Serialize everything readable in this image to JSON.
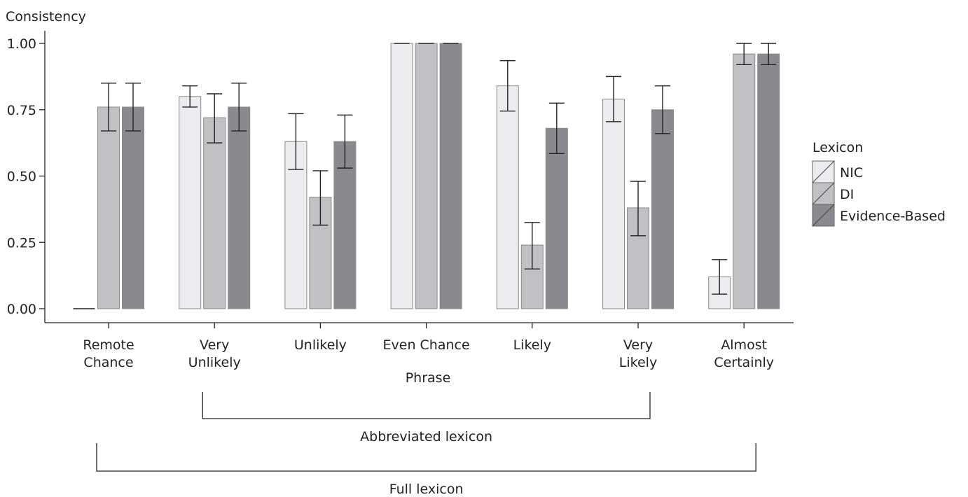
{
  "chart_data": {
    "type": "bar",
    "ylabel": "Consistency",
    "xlabel": "Phrase",
    "ylim": [
      0,
      1
    ],
    "yticks": [
      "0.00",
      "0.25",
      "0.50",
      "0.75",
      "1.00"
    ],
    "ytick_values": [
      0,
      0.25,
      0.5,
      0.75,
      1.0
    ],
    "grid": false,
    "legend_position": "right",
    "legend_title": "Lexicon",
    "categories": [
      [
        "Remote",
        "Chance"
      ],
      [
        "Very",
        "Unlikely"
      ],
      [
        "Unlikely"
      ],
      [
        "Even Chance"
      ],
      [
        "Likely"
      ],
      [
        "Very",
        "Likely"
      ],
      [
        "Almost",
        "Certainly"
      ]
    ],
    "series": [
      {
        "name": "NIC",
        "color": "#ececee",
        "values": [
          0.0,
          0.8,
          0.63,
          1.0,
          0.84,
          0.79,
          0.12
        ],
        "err_low": [
          0.0,
          0.76,
          0.525,
          1.0,
          0.745,
          0.705,
          0.055
        ],
        "err_high": [
          0.0,
          0.84,
          0.735,
          1.0,
          0.935,
          0.875,
          0.185
        ]
      },
      {
        "name": "DI",
        "color": "#c1c1c4",
        "values": [
          0.76,
          0.72,
          0.42,
          1.0,
          0.24,
          0.38,
          0.96
        ],
        "err_low": [
          0.67,
          0.625,
          0.315,
          1.0,
          0.15,
          0.275,
          0.92
        ],
        "err_high": [
          0.85,
          0.81,
          0.52,
          1.0,
          0.325,
          0.48,
          1.0
        ]
      },
      {
        "name": "Evidence-Based",
        "color": "#8a8a8e",
        "values": [
          0.76,
          0.76,
          0.63,
          1.0,
          0.68,
          0.75,
          0.96
        ],
        "err_low": [
          0.67,
          0.67,
          0.53,
          1.0,
          0.585,
          0.66,
          0.92
        ],
        "err_high": [
          0.85,
          0.85,
          0.73,
          1.0,
          0.775,
          0.84,
          1.0
        ]
      }
    ],
    "brackets": [
      {
        "label": "Abbreviated lexicon",
        "from_category": 1,
        "to_category": 5
      },
      {
        "label": "Full lexicon",
        "from_category": 0,
        "to_category": 6
      }
    ]
  }
}
